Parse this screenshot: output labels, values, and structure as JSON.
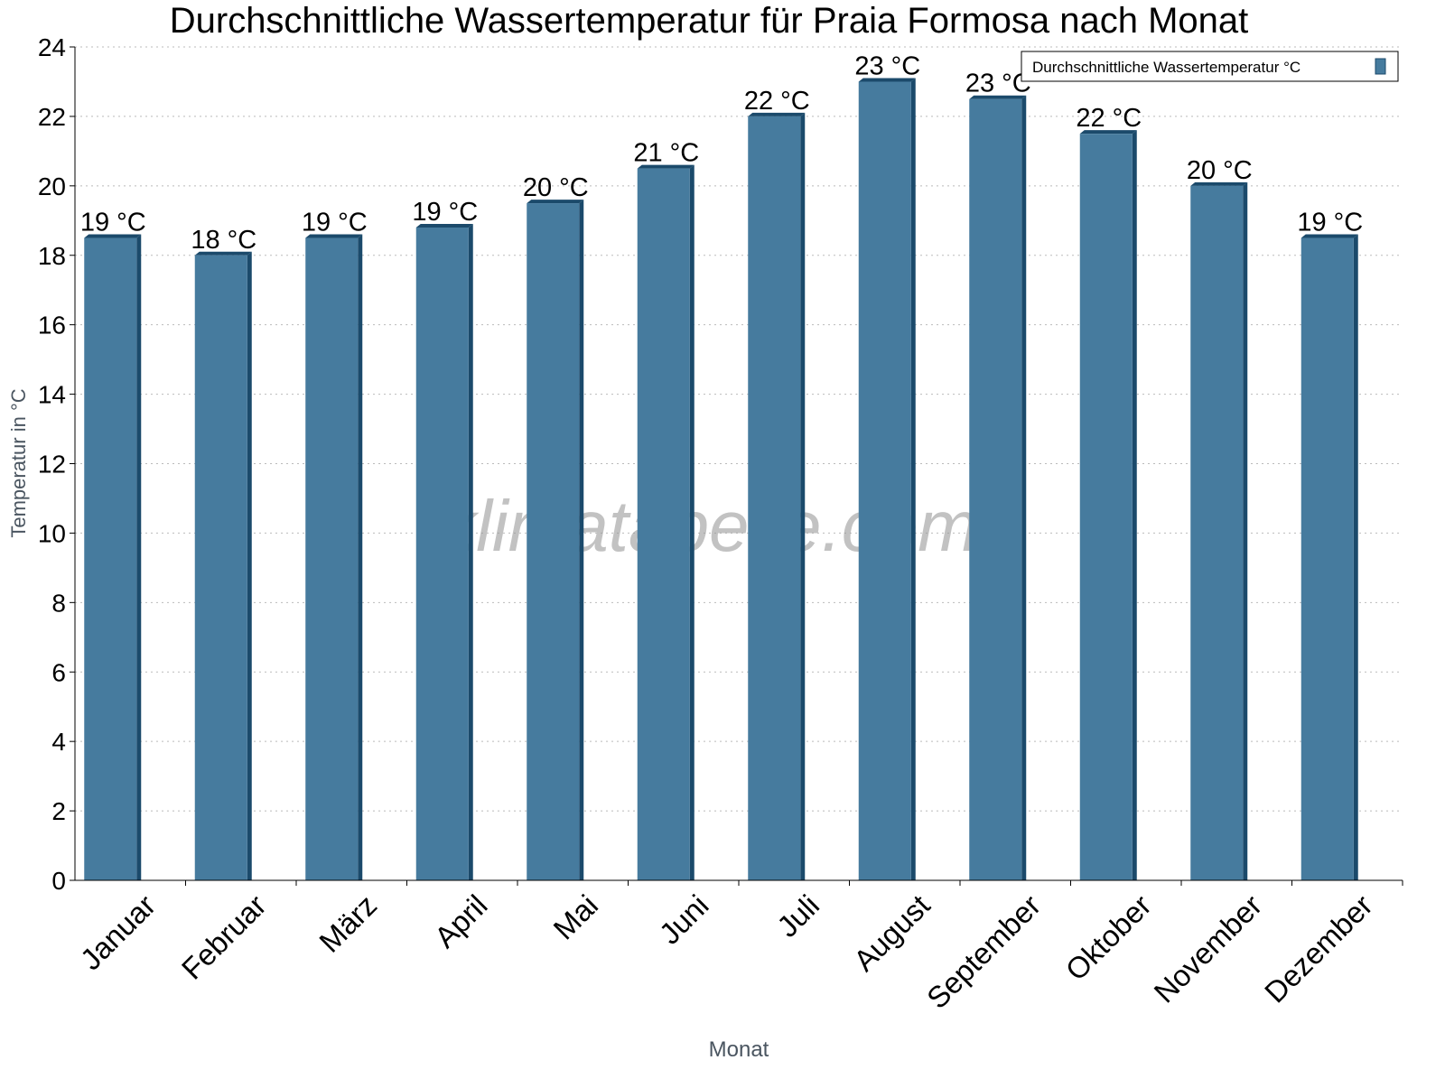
{
  "chart_data": {
    "type": "bar",
    "title": "Durchschnittliche Wassertemperatur für Praia Formosa nach Monat",
    "xlabel": "Monat",
    "ylabel": "Temperatur in °C",
    "categories": [
      "Januar",
      "Februar",
      "März",
      "April",
      "Mai",
      "Juni",
      "Juli",
      "August",
      "September",
      "Oktober",
      "November",
      "Dezember"
    ],
    "series": [
      {
        "name": "Durchschnittliche Wassertemperatur °C",
        "values": [
          18.5,
          18.0,
          18.5,
          18.8,
          19.5,
          20.5,
          22.0,
          23.0,
          22.5,
          21.5,
          20.0,
          18.5
        ],
        "labels": [
          "19 °C",
          "18 °C",
          "19 °C",
          "19 °C",
          "20 °C",
          "21 °C",
          "22 °C",
          "23 °C",
          "23 °C",
          "22 °C",
          "20 °C",
          "19 °C"
        ],
        "color": "#467b9e",
        "edge_color": "#1b4a6b"
      }
    ],
    "ylim": [
      0,
      24
    ],
    "yticks": [
      0,
      2,
      4,
      6,
      8,
      10,
      12,
      14,
      16,
      18,
      20,
      22,
      24
    ],
    "grid": true,
    "legend_position": "top-right",
    "watermark": "klimatabelle.com"
  }
}
